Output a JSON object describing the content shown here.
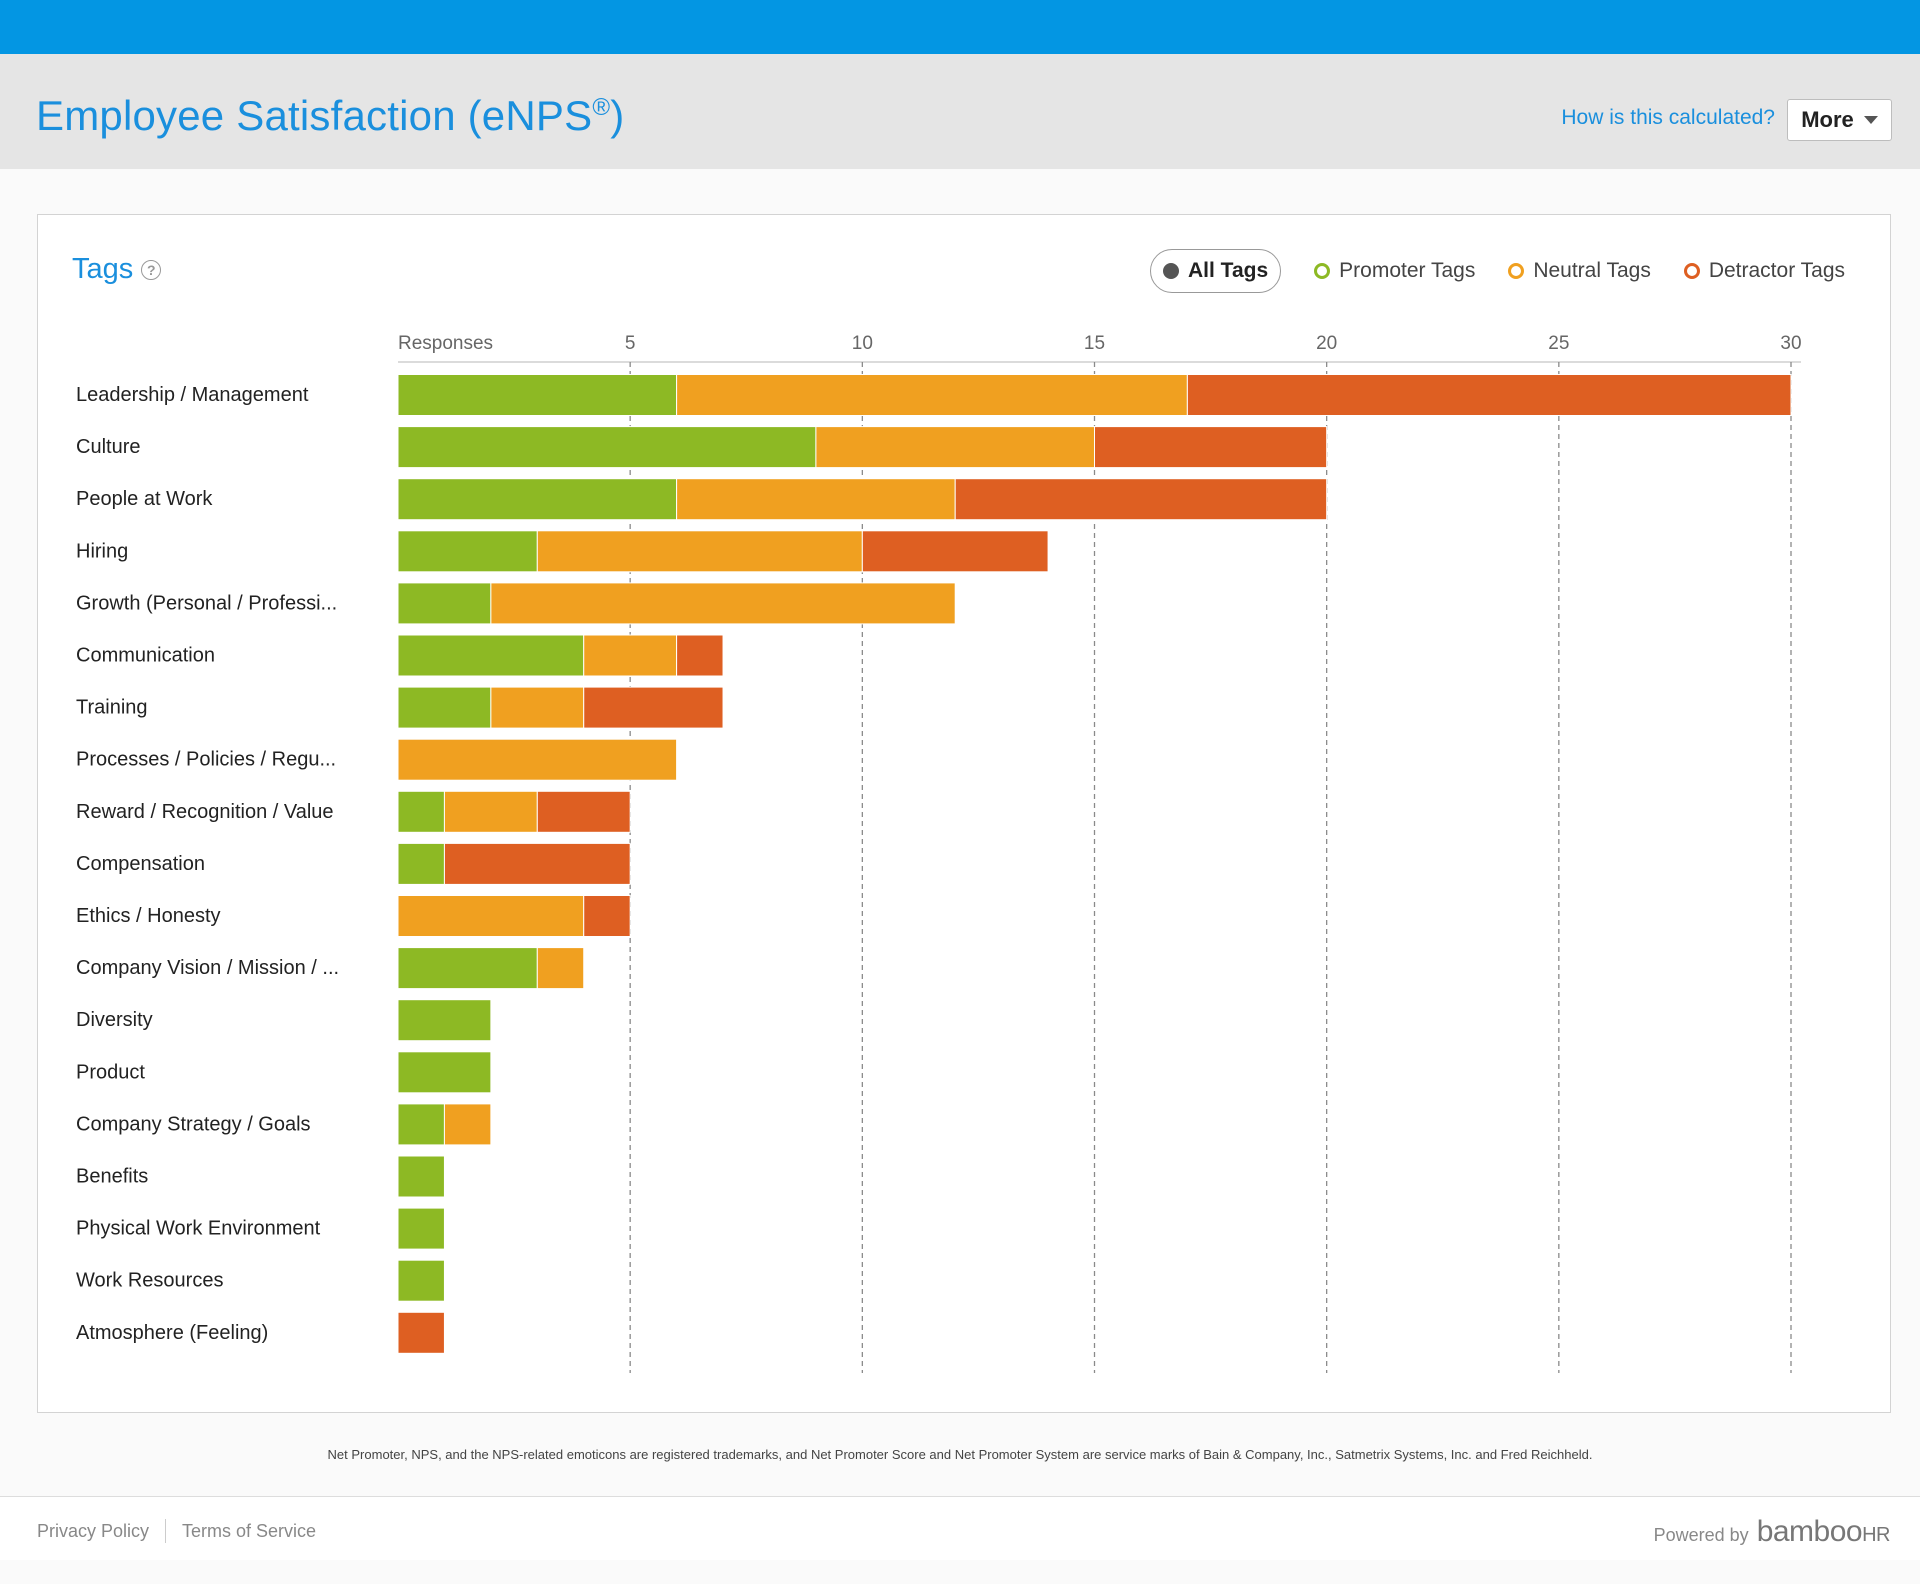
{
  "header": {
    "title": "Employee Satisfaction (eNPS",
    "title_reg": "®",
    "title_close": ")",
    "how_link": "How is this calculated?",
    "more_label": "More"
  },
  "card": {
    "title": "Tags",
    "help_glyph": "?"
  },
  "legend": {
    "items": [
      {
        "label": "All Tags",
        "color": "#555555"
      },
      {
        "label": "Promoter Tags",
        "color": "#8db924"
      },
      {
        "label": "Neutral Tags",
        "color": "#f0a020"
      },
      {
        "label": "Detractor Tags",
        "color": "#de5f22"
      }
    ]
  },
  "chart_data": {
    "type": "bar",
    "orientation": "horizontal",
    "stacked": true,
    "axis_label": "Responses",
    "xlim": [
      0,
      30
    ],
    "xticks": [
      5,
      10,
      15,
      20,
      25,
      30
    ],
    "grid": "vertical-dashed",
    "categories": [
      "Leadership / Management",
      "Culture",
      "People at Work",
      "Hiring",
      "Growth (Personal / Professi...",
      "Communication",
      "Training",
      "Processes / Policies / Regu...",
      "Reward / Recognition / Value",
      "Compensation",
      "Ethics / Honesty",
      "Company Vision / Mission / ...",
      "Diversity",
      "Product",
      "Company Strategy / Goals",
      "Benefits",
      "Physical Work Environment",
      "Work Resources",
      "Atmosphere (Feeling)"
    ],
    "series": [
      {
        "name": "Promoter Tags",
        "color": "#8db924",
        "values": [
          6,
          9,
          6,
          3,
          2,
          4,
          2,
          0,
          1,
          1,
          0,
          3,
          2,
          2,
          1,
          1,
          1,
          1,
          0
        ]
      },
      {
        "name": "Neutral Tags",
        "color": "#f0a020",
        "values": [
          11,
          6,
          6,
          7,
          10,
          2,
          2,
          6,
          2,
          0,
          4,
          1,
          0,
          0,
          1,
          0,
          0,
          0,
          0
        ]
      },
      {
        "name": "Detractor Tags",
        "color": "#de5f22",
        "values": [
          13,
          5,
          8,
          4,
          0,
          1,
          3,
          0,
          2,
          4,
          1,
          0,
          0,
          0,
          0,
          0,
          0,
          0,
          1
        ]
      }
    ]
  },
  "disclaimer": "Net Promoter, NPS, and the NPS-related emoticons are registered trademarks, and Net Promoter Score and Net Promoter System are service marks of Bain & Company, Inc., Satmetrix Systems, Inc. and Fred Reichheld.",
  "footer": {
    "privacy": "Privacy Policy",
    "terms": "Terms of Service",
    "powered_by": "Powered by",
    "logo_main": "bamboo",
    "logo_hr": "HR"
  }
}
